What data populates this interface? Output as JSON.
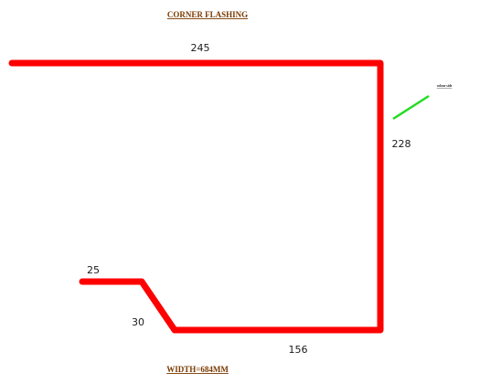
{
  "title": "CORNER  FLASHING",
  "footer": "WIDTH=684MM",
  "callout_label": "colour side",
  "colors": {
    "profile": "#ff0000",
    "callout": "#22dd22",
    "title_text": "#7a3a00",
    "dimension_text": "#1a1a1a",
    "background": "#ffffff"
  },
  "dimensions": {
    "top": "245",
    "right": "228",
    "bottom": "156",
    "slope": "30",
    "lip": "25"
  }
}
